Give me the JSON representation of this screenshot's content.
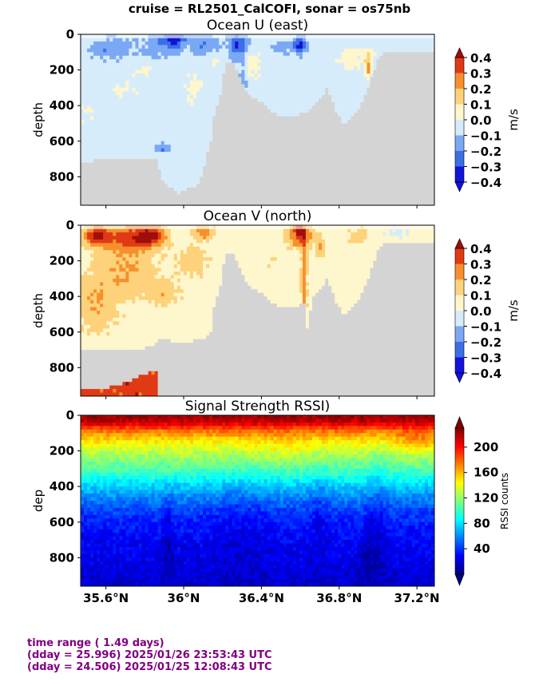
{
  "figure": {
    "suptitle": "cruise = RL2501_CalCOFI,  sonar = os75nb",
    "footer": {
      "line1": "time range ( 1.49 days)",
      "line2": "(dday = 25.996) 2025/01/26 23:53:43 UTC",
      "line3": "(dday = 24.506) 2025/01/25 12:08:43 UTC"
    }
  },
  "chart_data": [
    {
      "type": "heatmap",
      "title": "Ocean U (east)",
      "ylabel": "depth",
      "xlabel": "",
      "x_range": [
        35.47,
        37.29
      ],
      "x_ticks": [
        35.6,
        36.0,
        36.4,
        36.8,
        37.2
      ],
      "x_tick_labels": [],
      "ylim": [
        960,
        0
      ],
      "y_ticks": [
        0,
        200,
        400,
        600,
        800
      ],
      "y_tick_labels": [
        "0",
        "200",
        "400",
        "600",
        "800"
      ],
      "colorbar": {
        "label": "m/s",
        "ticks": [
          0.4,
          0.3,
          0.2,
          0.1,
          0.0,
          -0.1,
          -0.2,
          -0.3,
          -0.4
        ],
        "tick_labels": [
          "0.4",
          "0.3",
          "0.2",
          "0.1",
          "0.0",
          "−0.1",
          "−0.2",
          "−0.3",
          "−0.4"
        ],
        "colors": [
          "#1212d9",
          "#3c6ee6",
          "#7aa8f5",
          "#d7ecfb",
          "#fef6cc",
          "#fdd27a",
          "#f7902c",
          "#e03a15",
          "#9e0f0b"
        ],
        "extend": "both"
      },
      "no_data_color": "#d4d4d4",
      "bottom_mask": [
        [
          35.47,
          720
        ],
        [
          35.6,
          700
        ],
        [
          35.8,
          710
        ],
        [
          35.87,
          700
        ],
        [
          35.88,
          820
        ],
        [
          35.98,
          900
        ],
        [
          36.0,
          880
        ],
        [
          36.08,
          840
        ],
        [
          36.14,
          600
        ],
        [
          36.16,
          440
        ],
        [
          36.18,
          380
        ],
        [
          36.2,
          300
        ],
        [
          36.21,
          180
        ],
        [
          36.22,
          150
        ],
        [
          36.26,
          160
        ],
        [
          36.28,
          220
        ],
        [
          36.31,
          300
        ],
        [
          36.33,
          320
        ],
        [
          36.36,
          360
        ],
        [
          36.4,
          380
        ],
        [
          36.43,
          420
        ],
        [
          36.5,
          460
        ],
        [
          36.55,
          470
        ],
        [
          36.58,
          460
        ],
        [
          36.62,
          440
        ],
        [
          36.66,
          420
        ],
        [
          36.7,
          360
        ],
        [
          36.74,
          300
        ],
        [
          36.78,
          420
        ],
        [
          36.82,
          500
        ],
        [
          36.86,
          480
        ],
        [
          36.9,
          420
        ],
        [
          36.95,
          300
        ],
        [
          37.0,
          150
        ],
        [
          37.03,
          100
        ],
        [
          37.29,
          100
        ]
      ],
      "features": [
        {
          "x": 35.62,
          "y": 80,
          "rx": 0.1,
          "ry": 60,
          "v": -0.15
        },
        {
          "x": 35.9,
          "y": 60,
          "rx": 0.12,
          "ry": 70,
          "v": -0.12
        },
        {
          "x": 35.95,
          "y": 30,
          "rx": 0.06,
          "ry": 40,
          "v": -0.22
        },
        {
          "x": 36.12,
          "y": 60,
          "rx": 0.06,
          "ry": 60,
          "v": -0.15
        },
        {
          "x": 36.28,
          "y": 60,
          "rx": 0.05,
          "ry": 80,
          "v": -0.25
        },
        {
          "x": 36.3,
          "y": 250,
          "rx": 0.03,
          "ry": 120,
          "v": -0.1
        },
        {
          "x": 36.6,
          "y": 60,
          "rx": 0.03,
          "ry": 50,
          "v": -0.3
        },
        {
          "x": 36.5,
          "y": 80,
          "rx": 0.06,
          "ry": 40,
          "v": -0.12
        },
        {
          "x": 36.85,
          "y": 140,
          "rx": 0.06,
          "ry": 60,
          "v": 0.12
        },
        {
          "x": 36.95,
          "y": 190,
          "rx": 0.015,
          "ry": 50,
          "v": 0.3
        },
        {
          "x": 36.95,
          "y": 120,
          "rx": 0.03,
          "ry": 40,
          "v": 0.15
        },
        {
          "x": 35.8,
          "y": 200,
          "rx": 0.06,
          "ry": 40,
          "v": 0.08
        },
        {
          "x": 35.7,
          "y": 300,
          "rx": 0.08,
          "ry": 60,
          "v": 0.06
        },
        {
          "x": 36.05,
          "y": 300,
          "rx": 0.05,
          "ry": 80,
          "v": 0.08
        },
        {
          "x": 36.15,
          "y": 140,
          "rx": 0.05,
          "ry": 50,
          "v": 0.06
        },
        {
          "x": 35.5,
          "y": 450,
          "rx": 0.04,
          "ry": 100,
          "v": 0.05
        },
        {
          "x": 35.9,
          "y": 640,
          "rx": 0.04,
          "ry": 30,
          "v": -0.15
        },
        {
          "x": 36.35,
          "y": 160,
          "rx": 0.07,
          "ry": 100,
          "v": 0.08
        }
      ],
      "background_value": -0.05
    },
    {
      "type": "heatmap",
      "title": "Ocean V (north)",
      "ylabel": "depth",
      "xlabel": "",
      "x_range": [
        35.47,
        37.29
      ],
      "x_ticks": [
        35.6,
        36.0,
        36.4,
        36.8,
        37.2
      ],
      "x_tick_labels": [],
      "ylim": [
        960,
        0
      ],
      "y_ticks": [
        0,
        200,
        400,
        600,
        800
      ],
      "y_tick_labels": [
        "0",
        "200",
        "400",
        "600",
        "800"
      ],
      "colorbar": {
        "label": "m/s",
        "ticks": [
          0.4,
          0.3,
          0.2,
          0.1,
          0.0,
          -0.1,
          -0.2,
          -0.3,
          -0.4
        ],
        "tick_labels": [
          "0.4",
          "0.3",
          "0.2",
          "0.1",
          "0.0",
          "−0.1",
          "−0.2",
          "−0.3",
          "−0.4"
        ],
        "colors": [
          "#1212d9",
          "#3c6ee6",
          "#7aa8f5",
          "#d7ecfb",
          "#fef6cc",
          "#fdd27a",
          "#f7902c",
          "#e03a15",
          "#9e0f0b"
        ],
        "extend": "both"
      },
      "no_data_color": "#d4d4d4",
      "bottom_mask": [
        [
          35.47,
          700
        ],
        [
          35.6,
          690
        ],
        [
          35.8,
          690
        ],
        [
          35.87,
          660
        ],
        [
          35.88,
          640
        ],
        [
          36.0,
          660
        ],
        [
          36.1,
          640
        ],
        [
          36.14,
          600
        ],
        [
          36.16,
          440
        ],
        [
          36.18,
          380
        ],
        [
          36.2,
          300
        ],
        [
          36.21,
          180
        ],
        [
          36.22,
          150
        ],
        [
          36.26,
          160
        ],
        [
          36.28,
          220
        ],
        [
          36.31,
          300
        ],
        [
          36.33,
          320
        ],
        [
          36.36,
          360
        ],
        [
          36.4,
          380
        ],
        [
          36.43,
          420
        ],
        [
          36.5,
          460
        ],
        [
          36.55,
          470
        ],
        [
          36.58,
          460
        ],
        [
          36.62,
          440
        ],
        [
          36.64,
          620
        ],
        [
          36.66,
          420
        ],
        [
          36.7,
          360
        ],
        [
          36.74,
          300
        ],
        [
          36.78,
          420
        ],
        [
          36.82,
          500
        ],
        [
          36.86,
          480
        ],
        [
          36.9,
          420
        ],
        [
          36.95,
          300
        ],
        [
          37.0,
          150
        ],
        [
          37.03,
          100
        ],
        [
          37.29,
          100
        ]
      ],
      "deep_band": {
        "x0": 35.47,
        "x1": 35.87,
        "y_top": [
          930,
          920,
          900,
          850,
          810
        ],
        "value": 0.35
      },
      "features": [
        {
          "x": 35.55,
          "y": 60,
          "rx": 0.06,
          "ry": 50,
          "v": 0.35
        },
        {
          "x": 35.7,
          "y": 70,
          "rx": 0.12,
          "ry": 70,
          "v": 0.25
        },
        {
          "x": 35.83,
          "y": 60,
          "rx": 0.08,
          "ry": 60,
          "v": 0.35
        },
        {
          "x": 35.7,
          "y": 250,
          "rx": 0.15,
          "ry": 150,
          "v": 0.16
        },
        {
          "x": 35.55,
          "y": 450,
          "rx": 0.1,
          "ry": 150,
          "v": 0.14
        },
        {
          "x": 35.9,
          "y": 380,
          "rx": 0.08,
          "ry": 60,
          "v": 0.13
        },
        {
          "x": 36.05,
          "y": 200,
          "rx": 0.08,
          "ry": 80,
          "v": 0.12
        },
        {
          "x": 36.1,
          "y": 40,
          "rx": 0.05,
          "ry": 40,
          "v": 0.22
        },
        {
          "x": 36.6,
          "y": 60,
          "rx": 0.06,
          "ry": 60,
          "v": 0.32
        },
        {
          "x": 36.62,
          "y": 300,
          "rx": 0.015,
          "ry": 250,
          "v": 0.22
        },
        {
          "x": 36.6,
          "y": 30,
          "rx": 0.02,
          "ry": 20,
          "v": 0.45
        },
        {
          "x": 36.7,
          "y": 120,
          "rx": 0.02,
          "ry": 60,
          "v": 0.15
        },
        {
          "x": 36.9,
          "y": 60,
          "rx": 0.05,
          "ry": 40,
          "v": 0.12
        },
        {
          "x": 37.1,
          "y": 40,
          "rx": 0.08,
          "ry": 40,
          "v": -0.06
        },
        {
          "x": 36.45,
          "y": 200,
          "rx": 0.08,
          "ry": 100,
          "v": 0.03
        }
      ],
      "background_value": 0.05
    },
    {
      "type": "heatmap",
      "title": "Signal Strength RSSI)",
      "ylabel": "dep",
      "xlabel": "",
      "x_range": [
        35.47,
        37.29
      ],
      "x_ticks": [
        35.6,
        36.0,
        36.4,
        36.8,
        37.2
      ],
      "x_tick_labels": [
        "35.6°N",
        "36°N",
        "36.4°N",
        "36.8°N",
        "37.2°N"
      ],
      "ylim": [
        960,
        0
      ],
      "y_ticks": [
        0,
        200,
        400,
        600,
        800
      ],
      "y_tick_labels": [
        "0",
        "200",
        "400",
        "600",
        "800"
      ],
      "colorbar": {
        "label": "RSSI counts",
        "ticks": [
          200,
          160,
          120,
          80,
          40
        ],
        "tick_labels": [
          "200",
          "160",
          "120",
          "80",
          "40"
        ],
        "range": [
          0,
          230
        ],
        "colormap": "jet",
        "extend": "both"
      },
      "profile": [
        [
          0,
          225
        ],
        [
          40,
          215
        ],
        [
          80,
          180
        ],
        [
          140,
          150
        ],
        [
          220,
          125
        ],
        [
          320,
          100
        ],
        [
          400,
          75
        ],
        [
          480,
          55
        ],
        [
          560,
          40
        ],
        [
          700,
          28
        ],
        [
          960,
          18
        ]
      ],
      "features": [
        {
          "x": 36.3,
          "y": 600,
          "rx": 0.15,
          "ry": 350,
          "v": -8
        },
        {
          "x": 36.7,
          "y": 500,
          "rx": 0.06,
          "ry": 300,
          "v": -10
        },
        {
          "x": 37.0,
          "y": 500,
          "rx": 0.05,
          "ry": 400,
          "v": -10
        },
        {
          "x": 35.92,
          "y": 700,
          "rx": 0.03,
          "ry": 250,
          "v": -14
        },
        {
          "x": 36.95,
          "y": 800,
          "rx": 0.05,
          "ry": 200,
          "v": -12
        },
        {
          "x": 37.2,
          "y": 150,
          "rx": 0.1,
          "ry": 60,
          "v": 20
        },
        {
          "x": 36.5,
          "y": 200,
          "rx": 0.2,
          "ry": 80,
          "v": 8
        }
      ]
    }
  ]
}
